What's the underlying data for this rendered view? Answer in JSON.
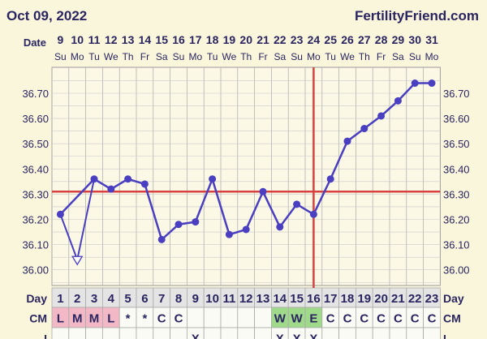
{
  "header": {
    "date": "Oct 09, 2022",
    "brand": "FertilityFriend.com"
  },
  "chart_data": {
    "type": "line",
    "title": "",
    "date_label": "Date",
    "dates": [
      "9",
      "10",
      "11",
      "12",
      "13",
      "14",
      "15",
      "16",
      "17",
      "18",
      "19",
      "20",
      "21",
      "22",
      "23",
      "24",
      "25",
      "26",
      "27",
      "28",
      "29",
      "30",
      "31"
    ],
    "weekdays": [
      "Su",
      "Mo",
      "Tu",
      "We",
      "Th",
      "Fr",
      "Sa",
      "Su",
      "Mo",
      "Tu",
      "We",
      "Th",
      "Fr",
      "Sa",
      "Su",
      "Mo",
      "Tu",
      "We",
      "Th",
      "Fr",
      "Sa",
      "Su",
      "Mo"
    ],
    "day_label": "Day",
    "days": [
      "1",
      "2",
      "3",
      "4",
      "5",
      "6",
      "7",
      "8",
      "9",
      "10",
      "11",
      "12",
      "13",
      "14",
      "15",
      "16",
      "17",
      "18",
      "19",
      "20",
      "21",
      "22",
      "23"
    ],
    "temperatures": [
      36.22,
      36.04,
      36.36,
      36.32,
      36.36,
      36.34,
      36.12,
      36.18,
      36.19,
      36.36,
      36.14,
      36.16,
      36.31,
      36.17,
      36.26,
      36.22,
      36.36,
      36.51,
      36.56,
      36.61,
      36.67,
      36.74,
      36.74
    ],
    "discarded_day": 2,
    "y_ticks": [
      "36.70",
      "36.60",
      "36.50",
      "36.40",
      "36.30",
      "36.20",
      "36.10",
      "36.00"
    ],
    "ylim": [
      35.945,
      36.8
    ],
    "coverline": 36.31,
    "ovulation_day": 16,
    "cm_label": "CM",
    "cm": [
      "L",
      "M",
      "M",
      "L",
      "*",
      "*",
      "C",
      "C",
      "",
      "",
      "",
      "",
      "",
      "W",
      "W",
      "E",
      "C",
      "C",
      "C",
      "C",
      "C",
      "C",
      "C"
    ],
    "i_label": "I",
    "intercourse": [
      "",
      "",
      "",
      "",
      "",
      "",
      "",
      "",
      "X",
      "",
      "",
      "",
      "",
      "X",
      "X",
      "X",
      "",
      "",
      "",
      "",
      "",
      "",
      ""
    ],
    "colors": {
      "line": "#4a3fc0",
      "coverline": "#d9413f",
      "menses": "#f2b8c6",
      "fertile": "#9fd98a",
      "text": "#2a2560"
    }
  }
}
